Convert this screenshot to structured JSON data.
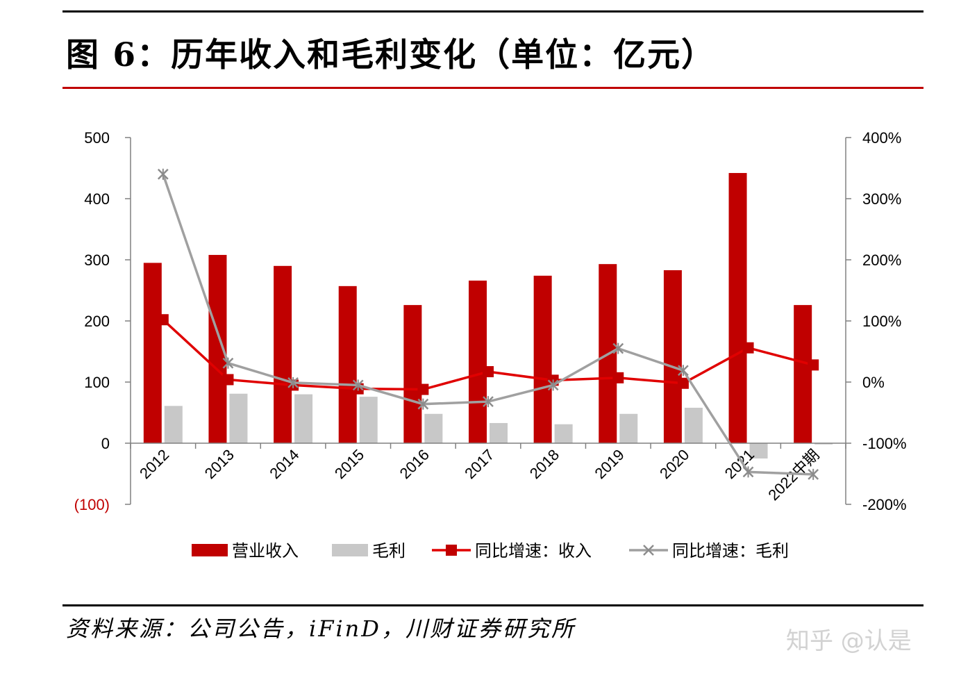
{
  "title": "图 6：历年收入和毛利变化（单位：亿元）",
  "source": "资料来源：公司公告，iFinD，川财证券研究所",
  "watermark": "知乎 @认是",
  "colors": {
    "revenue": "#c00000",
    "gross_profit": "#c8c8c8",
    "revenue_growth": "#e00000",
    "gross_profit_growth": "#a0a0a0",
    "negative_tick": "#c00000"
  },
  "chart_data": {
    "type": "bar",
    "categories": [
      "2012",
      "2013",
      "2014",
      "2015",
      "2016",
      "2017",
      "2018",
      "2019",
      "2020",
      "2021",
      "2022中期"
    ],
    "left_axis": {
      "ylim": [
        -100,
        500
      ],
      "ticks": [
        500,
        400,
        300,
        200,
        100,
        0,
        -100
      ],
      "tick_labels": [
        "500",
        "400",
        "300",
        "200",
        "100",
        "0",
        "(100)"
      ]
    },
    "right_axis": {
      "ylim": [
        -200,
        400
      ],
      "ticks": [
        400,
        300,
        200,
        100,
        0,
        -100,
        -200
      ],
      "tick_labels": [
        "400%",
        "300%",
        "200%",
        "100%",
        "0%",
        "-100%",
        "-200%"
      ]
    },
    "series": [
      {
        "name": "营业收入",
        "type": "bar",
        "axis": "left",
        "values": [
          295,
          308,
          290,
          257,
          226,
          266,
          274,
          293,
          283,
          442,
          226
        ]
      },
      {
        "name": "毛利",
        "type": "bar",
        "axis": "left",
        "values": [
          61,
          81,
          80,
          76,
          48,
          33,
          31,
          48,
          58,
          -25,
          -2
        ]
      },
      {
        "name": "同比增速：收入",
        "type": "line",
        "marker": "square",
        "axis": "right",
        "values": [
          102,
          4,
          -5,
          -11,
          -12,
          17,
          3,
          7,
          -2,
          56,
          28
        ]
      },
      {
        "name": "同比增速：毛利",
        "type": "line",
        "marker": "x",
        "axis": "right",
        "values": [
          340,
          31,
          -1,
          -5,
          -36,
          -32,
          -5,
          55,
          19,
          -147,
          -151
        ]
      }
    ],
    "legend_position": "bottom",
    "grid": false
  }
}
